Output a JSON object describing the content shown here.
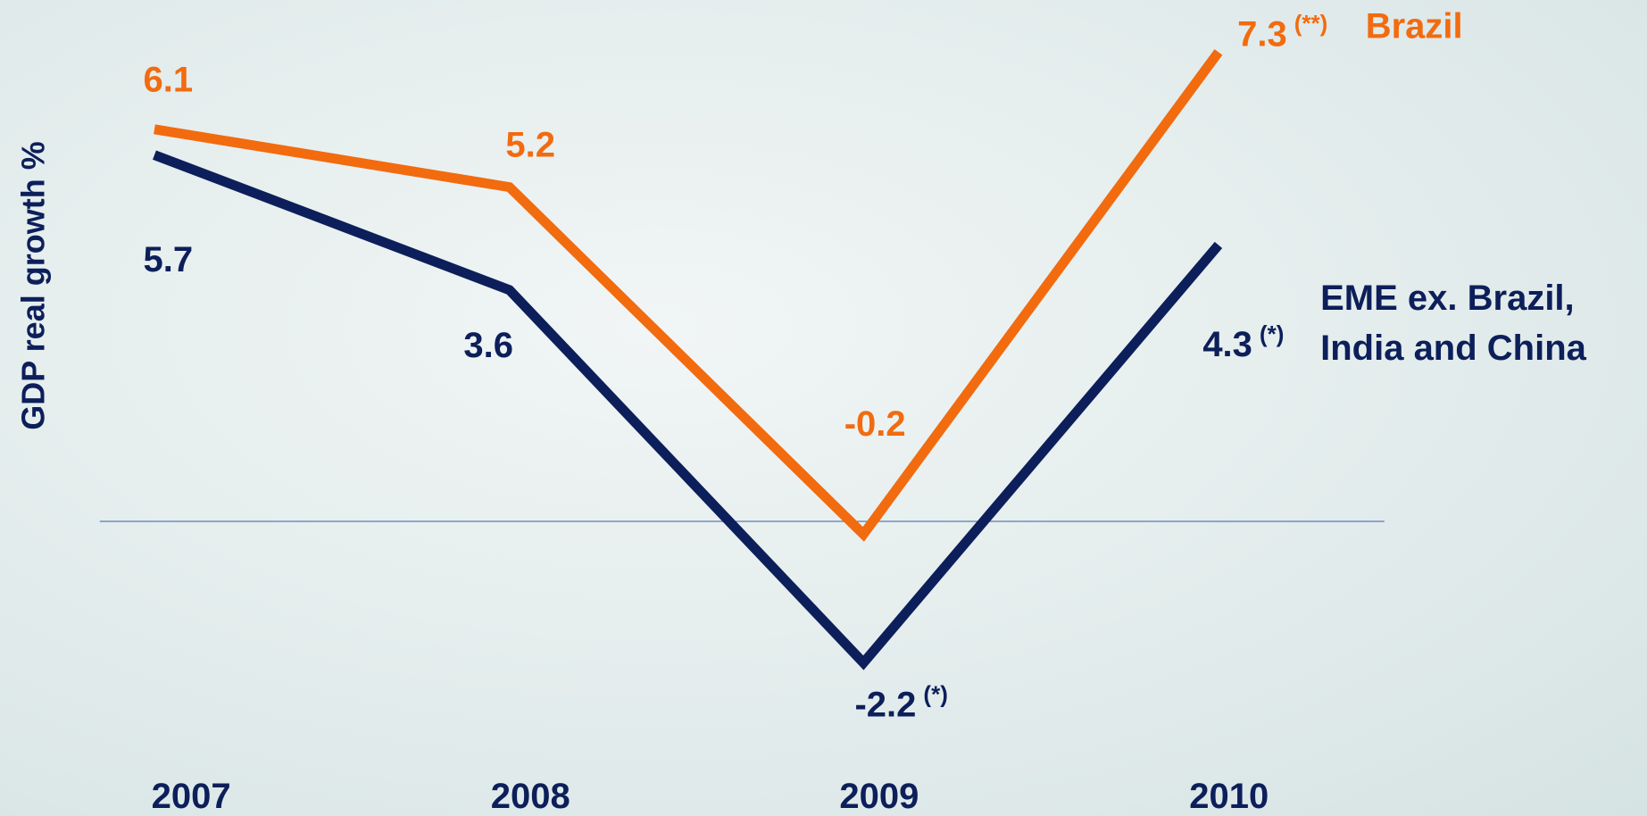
{
  "chart_data": {
    "type": "line",
    "y_label": "GDP real growth %",
    "categories": [
      "2007",
      "2008",
      "2009",
      "2010"
    ],
    "ylim": [
      -3,
      8
    ],
    "series": [
      {
        "name": "Brazil",
        "color": "#f26b0f",
        "values": [
          6.1,
          5.2,
          -0.2,
          7.3
        ],
        "notes": [
          null,
          null,
          null,
          "(**)"
        ]
      },
      {
        "name": "EME ex. Brazil, India and China",
        "color": "#0c1f5a",
        "values": [
          5.7,
          3.6,
          -2.2,
          4.3
        ],
        "notes": [
          null,
          null,
          "(*)",
          "(*)"
        ]
      }
    ]
  }
}
